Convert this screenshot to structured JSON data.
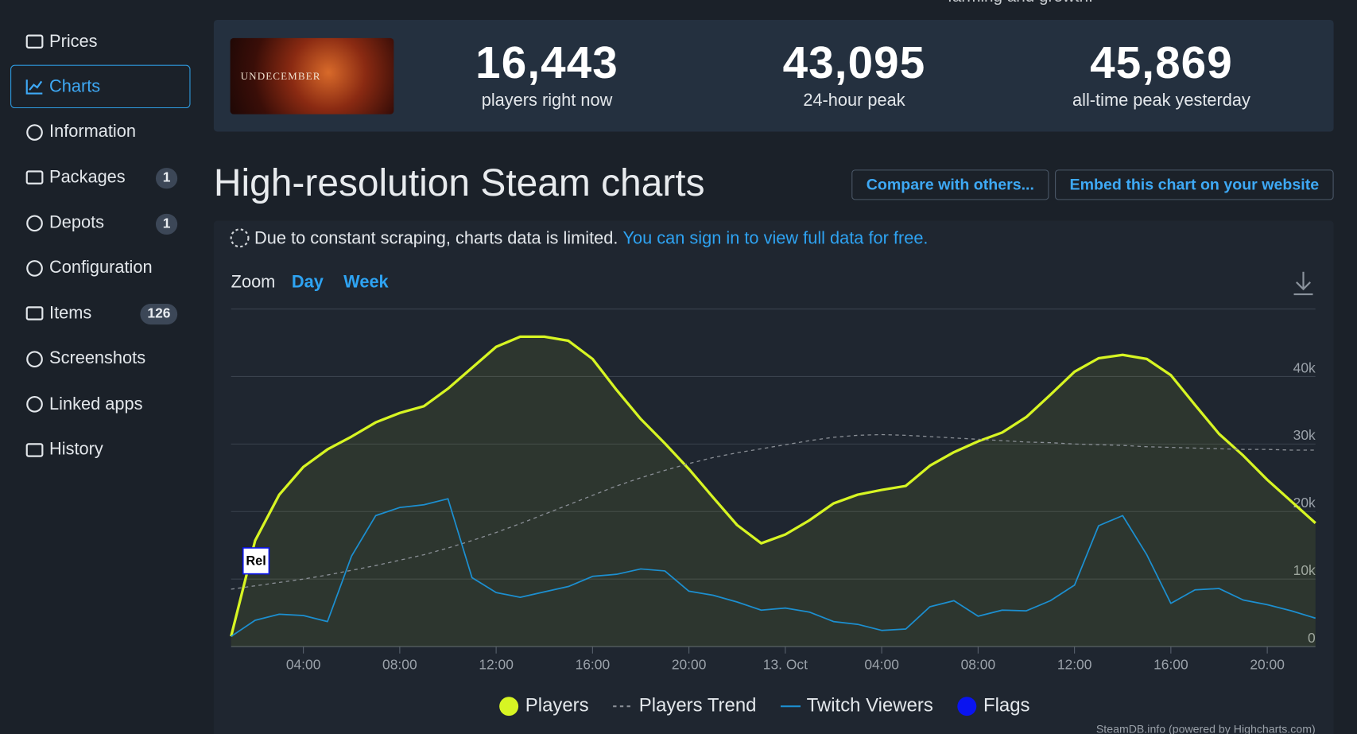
{
  "top_text": "farming and growth.",
  "sidebar": {
    "items": [
      {
        "label": "Prices"
      },
      {
        "label": "Charts"
      },
      {
        "label": "Information"
      },
      {
        "label": "Packages",
        "badge": "1"
      },
      {
        "label": "Depots",
        "badge": "1"
      },
      {
        "label": "Configuration"
      },
      {
        "label": "Items",
        "badge": "126"
      },
      {
        "label": "Screenshots"
      },
      {
        "label": "Linked apps"
      },
      {
        "label": "History"
      }
    ]
  },
  "game": {
    "logo_text": "UNDECEMBER"
  },
  "stats": [
    {
      "value": "16,443",
      "label": "players right now"
    },
    {
      "value": "43,095",
      "label": "24-hour peak"
    },
    {
      "value": "45,869",
      "label": "all-time peak yesterday"
    }
  ],
  "heading": "High-resolution Steam charts",
  "buttons": [
    "Compare with others...",
    "Embed this chart on your website"
  ],
  "notice": {
    "text": "Due to constant scraping, charts data is limited.",
    "link": "You can sign in to view full data for free."
  },
  "zoom": {
    "label": "Zoom",
    "options": [
      "Day",
      "Week"
    ]
  },
  "chart_data": {
    "type": "line",
    "categories": [
      null,
      null,
      null,
      "04:00",
      null,
      null,
      null,
      "08:00",
      null,
      null,
      null,
      "12:00",
      null,
      null,
      null,
      "16:00",
      null,
      null,
      null,
      "20:00",
      null,
      null,
      null,
      "13. Oct",
      null,
      null,
      null,
      "04:00",
      null,
      null,
      null,
      "08:00",
      null,
      null,
      null,
      "12:00",
      null,
      null,
      null,
      "16:00",
      null,
      null,
      null,
      "20:00",
      null,
      null
    ],
    "ylim": [
      0,
      50000
    ],
    "yticks": [
      {
        "value": 0,
        "label": "0"
      },
      {
        "value": 10000,
        "label": "10k"
      },
      {
        "value": 20000,
        "label": "20k"
      },
      {
        "value": 30000,
        "label": "30k"
      },
      {
        "value": 40000,
        "label": "40k"
      }
    ],
    "grid": true,
    "series": [
      {
        "name": "Players",
        "color": "#d7f523",
        "area": true,
        "values": [
          1500,
          15700,
          22500,
          26600,
          29200,
          31100,
          33200,
          34600,
          35600,
          38200,
          41300,
          44400,
          45900,
          45900,
          45300,
          42600,
          38000,
          33700,
          30100,
          26300,
          22100,
          18000,
          15300,
          16600,
          18700,
          21200,
          22500,
          23200,
          23800,
          26800,
          28800,
          30400,
          31700,
          34000,
          37300,
          40700,
          42700,
          43200,
          42600,
          40200,
          35800,
          31500,
          28300,
          24700,
          21500,
          18300
        ]
      },
      {
        "name": "Players Trend",
        "color": "#8a8f96",
        "dashed": true,
        "values": [
          8500,
          9000,
          9500,
          10000,
          10600,
          11300,
          12000,
          12800,
          13600,
          14600,
          15700,
          16900,
          18200,
          19600,
          21000,
          22400,
          23800,
          25000,
          26100,
          27100,
          28000,
          28700,
          29300,
          29900,
          30500,
          31000,
          31300,
          31400,
          31300,
          31100,
          30900,
          30700,
          30500,
          30300,
          30200,
          30000,
          29900,
          29800,
          29600,
          29500,
          29400,
          29300,
          29200,
          29200,
          29100,
          29100
        ]
      },
      {
        "name": "Twitch Viewers",
        "color": "#1c8fd0",
        "values": [
          1500,
          3900,
          4800,
          4600,
          3700,
          13400,
          19400,
          20600,
          21000,
          21900,
          10200,
          8000,
          7300,
          8100,
          8900,
          10400,
          10700,
          11500,
          11200,
          8200,
          7600,
          6600,
          5400,
          5700,
          5100,
          3700,
          3300,
          2400,
          2600,
          5900,
          6800,
          4500,
          5400,
          5300,
          6800,
          9100,
          17900,
          19400,
          13600,
          6400,
          8400,
          8600,
          6900,
          6200,
          5300,
          4200
        ]
      }
    ],
    "flags": {
      "name": "Flags",
      "color": "#0a14f0",
      "items": [
        {
          "x": 1,
          "label": "Rel"
        }
      ]
    },
    "credit": "SteamDB.info (powered by Highcharts.com)"
  }
}
